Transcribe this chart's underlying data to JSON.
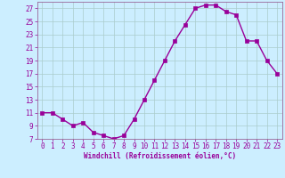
{
  "x": [
    0,
    1,
    2,
    3,
    4,
    5,
    6,
    7,
    8,
    9,
    10,
    11,
    12,
    13,
    14,
    15,
    16,
    17,
    18,
    19,
    20,
    21,
    22,
    23
  ],
  "y": [
    11,
    11,
    10,
    9,
    9.5,
    8,
    7.5,
    7,
    7.5,
    10,
    13,
    16,
    19,
    22,
    24.5,
    27,
    27.5,
    27.5,
    26.5,
    26,
    22,
    22,
    19,
    17
  ],
  "line_color": "#990099",
  "marker": "s",
  "marker_size": 2.2,
  "background_color": "#cceeff",
  "grid_color": "#aacccc",
  "xlabel": "Windchill (Refroidissement éolien,°C)",
  "xlabel_color": "#990099",
  "tick_color": "#990099",
  "spine_color": "#996699",
  "ylim": [
    7,
    28
  ],
  "yticks": [
    7,
    9,
    11,
    13,
    15,
    17,
    19,
    21,
    23,
    25,
    27
  ],
  "xlim": [
    -0.5,
    23.5
  ],
  "xticks": [
    0,
    1,
    2,
    3,
    4,
    5,
    6,
    7,
    8,
    9,
    10,
    11,
    12,
    13,
    14,
    15,
    16,
    17,
    18,
    19,
    20,
    21,
    22,
    23
  ],
  "line_width": 1.0,
  "tick_labelsize": 5.5,
  "xlabel_fontsize": 5.5
}
